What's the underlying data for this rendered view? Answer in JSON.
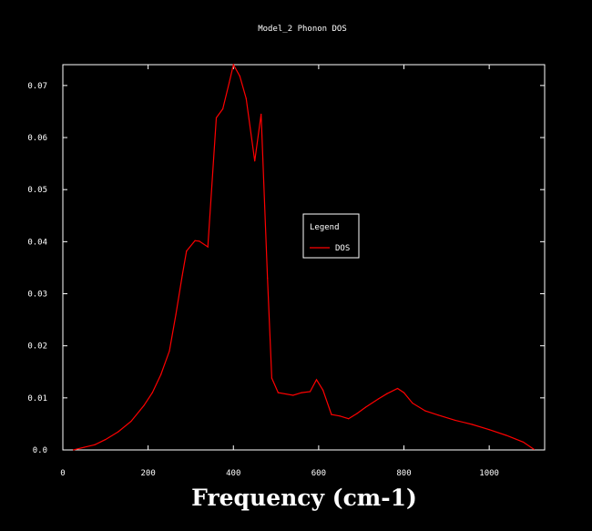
{
  "chart_data": {
    "type": "line",
    "title": "Model_2 Phonon DOS",
    "xlabel": "Frequency (cm-1)",
    "ylabel": "",
    "xlim": [
      0,
      1130
    ],
    "ylim": [
      0,
      0.074
    ],
    "x_ticks": [
      "0",
      "200",
      "400",
      "600",
      "800",
      "1000"
    ],
    "y_ticks": [
      "0.0",
      "0.01",
      "0.02",
      "0.03",
      "0.04",
      "0.05",
      "0.06",
      "0.07"
    ],
    "grid": false,
    "legend": {
      "title": "Legend",
      "position": "center-right"
    },
    "colors": {
      "background": "#000000",
      "axes": "#ffffff",
      "series": "#ff0000"
    },
    "series": [
      {
        "name": "DOS",
        "color": "#ff0000",
        "x": [
          25,
          50,
          75,
          100,
          130,
          160,
          190,
          210,
          230,
          250,
          265,
          280,
          290,
          310,
          320,
          340,
          360,
          375,
          390,
          400,
          415,
          430,
          450,
          465,
          480,
          490,
          505,
          540,
          560,
          580,
          595,
          610,
          630,
          650,
          670,
          690,
          710,
          740,
          760,
          785,
          800,
          820,
          850,
          880,
          920,
          960,
          1000,
          1040,
          1080,
          1105
        ],
        "values": [
          0.0,
          0.0005,
          0.001,
          0.002,
          0.0035,
          0.0055,
          0.0085,
          0.011,
          0.0145,
          0.019,
          0.026,
          0.0335,
          0.0382,
          0.0402,
          0.0401,
          0.039,
          0.0638,
          0.0655,
          0.0705,
          0.074,
          0.0718,
          0.0675,
          0.0555,
          0.0645,
          0.033,
          0.0138,
          0.011,
          0.0105,
          0.011,
          0.0112,
          0.0135,
          0.0115,
          0.0068,
          0.0065,
          0.006,
          0.007,
          0.0082,
          0.0098,
          0.0108,
          0.0118,
          0.011,
          0.009,
          0.0075,
          0.0067,
          0.0057,
          0.0049,
          0.0039,
          0.0028,
          0.0015,
          0.0001
        ]
      }
    ]
  }
}
